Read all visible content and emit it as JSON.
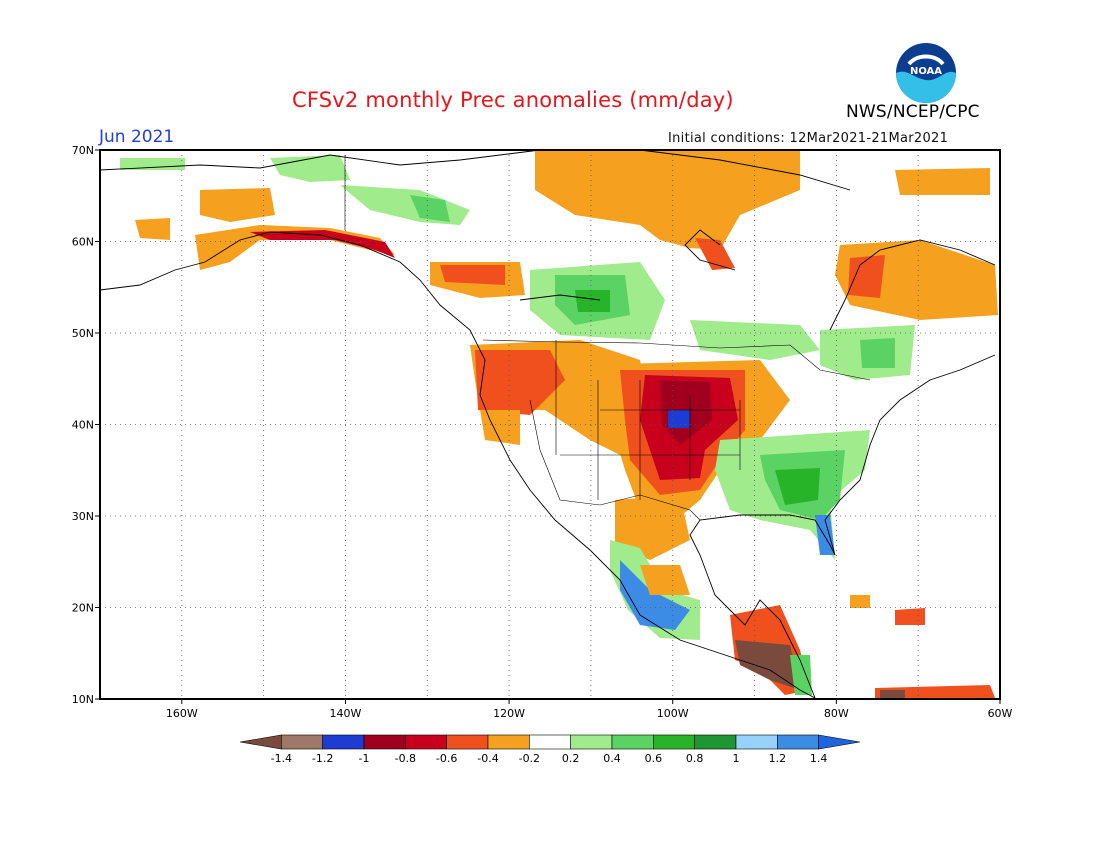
{
  "header": {
    "title": "CFSv2 monthly Prec anomalies (mm/day)",
    "month": "Jun 2021",
    "initial_conditions": "Initial conditions: 12Mar2021-21Mar2021",
    "agency": "NWS/NCEP/CPC",
    "logo_text": "NOAA"
  },
  "map": {
    "lat_labels": [
      "70N",
      "60N",
      "50N",
      "40N",
      "30N",
      "20N",
      "10N"
    ],
    "lon_labels": [
      "160W",
      "140W",
      "120W",
      "100W",
      "80W",
      "60W"
    ],
    "lon_range": [
      -170,
      -60
    ],
    "lat_range": [
      10,
      70
    ],
    "grid": "dotted"
  },
  "legend": {
    "labels": [
      "-1.4",
      "-1.2",
      "-1",
      "-0.8",
      "-0.6",
      "-0.4",
      "-0.2",
      "0.2",
      "0.4",
      "0.6",
      "0.8",
      "1",
      "1.2",
      "1.4"
    ],
    "colors": [
      "#7a4b3c",
      "#a0786a",
      "#1e3cd2",
      "#a0001e",
      "#c8001e",
      "#f0501e",
      "#f5a01e",
      "#ffffff",
      "#a0eb8c",
      "#5ad264",
      "#28b428",
      "#1e9632",
      "#96d2fa",
      "#3c8ce6",
      "#1e64dc"
    ]
  }
}
